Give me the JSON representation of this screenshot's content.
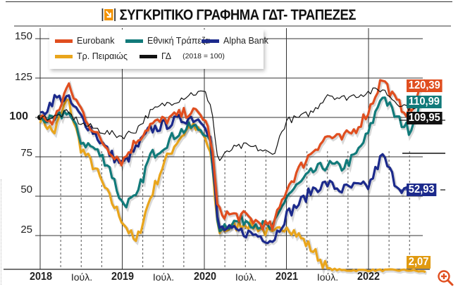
{
  "header": {
    "title": "ΣΥΓΚΡΙΤΙΚΟ ΓΡΑΦΗΜΑ ΓΔΤ- ΤΡΑΠΕΖΕΣ",
    "icon": "orange-arrow-icon"
  },
  "legend": {
    "items": [
      {
        "label": "Eurobank",
        "color": "#e04e1f"
      },
      {
        "label": "Εθνική Τράπεζα",
        "color": "#117a7a"
      },
      {
        "label": "Alpha Bank",
        "color": "#1c2a8c"
      },
      {
        "label": "Τρ. Πειραιώς",
        "color": "#e9a51c"
      },
      {
        "label": "ΓΔ",
        "color": "#111111"
      }
    ],
    "note": "(2018 = 100)"
  },
  "axes": {
    "y_ticks": [
      "150",
      "125",
      "100",
      "75",
      "50",
      "25"
    ],
    "x_ticks": [
      "2018",
      "Ιούλ.",
      "2019",
      "Ιούλ.",
      "2020",
      "Ιούλ.",
      "2021",
      "Ιούλ.",
      "2022"
    ]
  },
  "end_labels": {
    "eurobank": "120,39",
    "ethniki": "110,99",
    "gd": "109,95",
    "alpha": "52,93",
    "piraeus": "2,07"
  },
  "colors": {
    "eurobank": "#e04e1f",
    "ethniki": "#117a7a",
    "alpha": "#1c2a8c",
    "piraeus": "#e9a51c",
    "gd": "#111111",
    "zoom_icon": "#e04e1f"
  },
  "chart_data": {
    "type": "line",
    "title": "ΣΥΓΚΡΙΤΙΚΟ ΓΡΑΦΗΜΑ ΓΔΤ- ΤΡΑΠΕΖΕΣ",
    "subtitle": "(2018 = 100)",
    "xlabel": "",
    "ylabel": "",
    "ylim": [
      0,
      150
    ],
    "xlim": [
      "2018-01",
      "2022-09"
    ],
    "grid": true,
    "legend_position": "top-left",
    "x": [
      "2018-01",
      "2018-03",
      "2018-05",
      "2018-07",
      "2018-09",
      "2018-11",
      "2019-01",
      "2019-03",
      "2019-05",
      "2019-07",
      "2019-09",
      "2019-11",
      "2020-01",
      "2020-02",
      "2020-03",
      "2020-05",
      "2020-07",
      "2020-09",
      "2020-11",
      "2021-01",
      "2021-03",
      "2021-05",
      "2021-07",
      "2021-09",
      "2021-11",
      "2022-01",
      "2022-03",
      "2022-05",
      "2022-07",
      "2022-09"
    ],
    "series": [
      {
        "name": "Eurobank",
        "values": [
          100,
          97,
          120,
          105,
          90,
          80,
          72,
          85,
          95,
          98,
          101,
          104,
          100,
          85,
          40,
          38,
          37,
          33,
          30,
          55,
          68,
          80,
          88,
          86,
          92,
          104,
          125,
          110,
          102,
          120.39
        ]
      },
      {
        "name": "Εθνική Τράπεζα",
        "values": [
          100,
          97,
          105,
          85,
          80,
          70,
          45,
          48,
          75,
          82,
          90,
          94,
          92,
          80,
          30,
          33,
          35,
          32,
          29,
          50,
          58,
          66,
          70,
          68,
          75,
          90,
          115,
          100,
          92,
          110.99
        ]
      },
      {
        "name": "Alpha Bank",
        "values": [
          100,
          112,
          112,
          100,
          90,
          78,
          70,
          80,
          92,
          95,
          98,
          100,
          98,
          85,
          30,
          28,
          27,
          25,
          22,
          38,
          46,
          55,
          58,
          54,
          56,
          56,
          76,
          58,
          52,
          52.93
        ]
      },
      {
        "name": "Τρ. Πειραιώς",
        "values": [
          100,
          90,
          112,
          80,
          68,
          50,
          35,
          20,
          48,
          70,
          85,
          95,
          88,
          75,
          28,
          30,
          33,
          30,
          25,
          32,
          24,
          15,
          4,
          3,
          3,
          3,
          3,
          3,
          3,
          2.07
        ]
      },
      {
        "name": "ΓΔ",
        "values": [
          100,
          100,
          103,
          96,
          93,
          90,
          88,
          92,
          103,
          108,
          111,
          115,
          116,
          108,
          72,
          80,
          82,
          80,
          76,
          98,
          100,
          104,
          115,
          112,
          114,
          116,
          118,
          110,
          106,
          109.95
        ]
      }
    ],
    "end_values": {
      "Eurobank": 120.39,
      "Εθνική Τράπεζα": 110.99,
      "ΓΔ": 109.95,
      "Alpha Bank": 52.93,
      "Τρ. Πειραιώς": 2.07
    }
  }
}
